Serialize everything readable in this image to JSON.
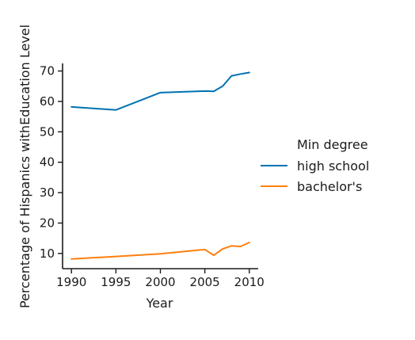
{
  "chart_data": {
    "type": "line",
    "xlabel": "Year",
    "ylabel": "Percentage of Hispanics withEducation Level",
    "xlim": [
      1989,
      2011
    ],
    "ylim": [
      5,
      72.5
    ],
    "xticks": [
      1990,
      1995,
      2000,
      2005,
      2010
    ],
    "yticks": [
      10,
      20,
      30,
      40,
      50,
      60,
      70
    ],
    "legend": {
      "title": "Min degree",
      "placement": "right"
    },
    "series": [
      {
        "name": "high school",
        "color": "#0072b2",
        "x": [
          1990,
          1995,
          2000,
          2005,
          2006,
          2007,
          2008,
          2009,
          2010
        ],
        "y": [
          58.2,
          57.2,
          62.9,
          63.4,
          63.3,
          65.0,
          68.4,
          69.0,
          69.5
        ]
      },
      {
        "name": "bachelor's",
        "color": "#ff7f0e",
        "x": [
          1990,
          1995,
          2000,
          2005,
          2006,
          2007,
          2008,
          2009,
          2010
        ],
        "y": [
          8.2,
          9.0,
          9.9,
          11.3,
          9.4,
          11.5,
          12.5,
          12.3,
          13.6
        ]
      }
    ]
  }
}
